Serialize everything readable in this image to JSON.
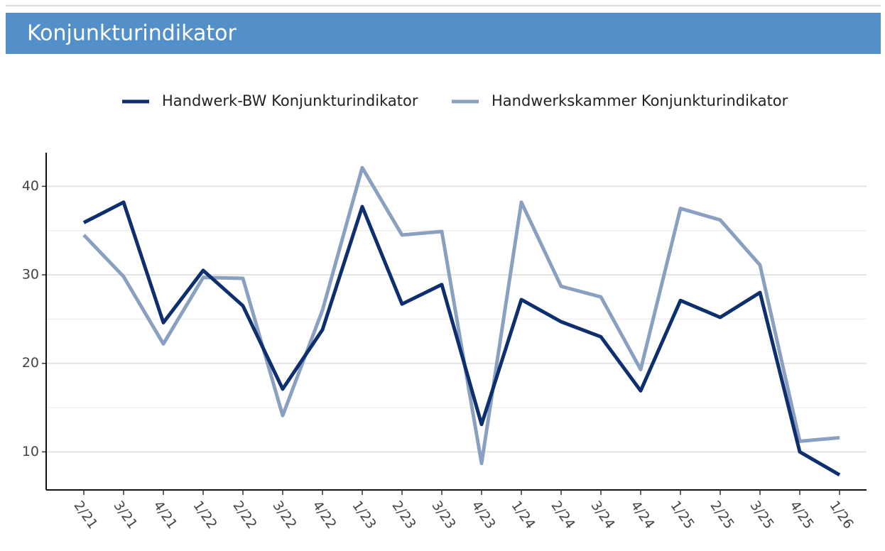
{
  "chart_data": {
    "type": "line",
    "title": "Konjunkturindikator",
    "categories": [
      "2/21",
      "3/21",
      "4/21",
      "1/22",
      "2/22",
      "3/22",
      "4/22",
      "1/23",
      "2/23",
      "3/23",
      "4/23",
      "1/24",
      "2/24",
      "3/24",
      "4/24",
      "1/25",
      "2/25",
      "3/25",
      "4/25",
      "1/26"
    ],
    "series": [
      {
        "name": "Handwerk-BW Konjunkturindikator",
        "color": "#0d2f6e",
        "values": [
          35.9,
          38.2,
          24.6,
          30.5,
          26.5,
          17.1,
          23.8,
          37.7,
          26.7,
          28.9,
          13.1,
          27.2,
          24.7,
          23.0,
          16.9,
          27.1,
          25.2,
          28.0,
          10.0,
          7.4
        ]
      },
      {
        "name": "Handwerkskammer Konjunkturindikator",
        "color": "#8aa0c0",
        "values": [
          34.5,
          29.8,
          22.2,
          29.7,
          29.6,
          14.1,
          26.0,
          42.1,
          34.5,
          34.9,
          8.7,
          38.2,
          28.7,
          27.5,
          19.3,
          37.5,
          36.2,
          31.1,
          11.2,
          11.6
        ]
      }
    ],
    "ylim": [
      5.7,
      43.8
    ],
    "yticks": [
      10,
      20,
      30,
      40
    ],
    "minor_yticks": [
      15,
      25,
      35
    ],
    "grid": true,
    "legend": "top"
  }
}
